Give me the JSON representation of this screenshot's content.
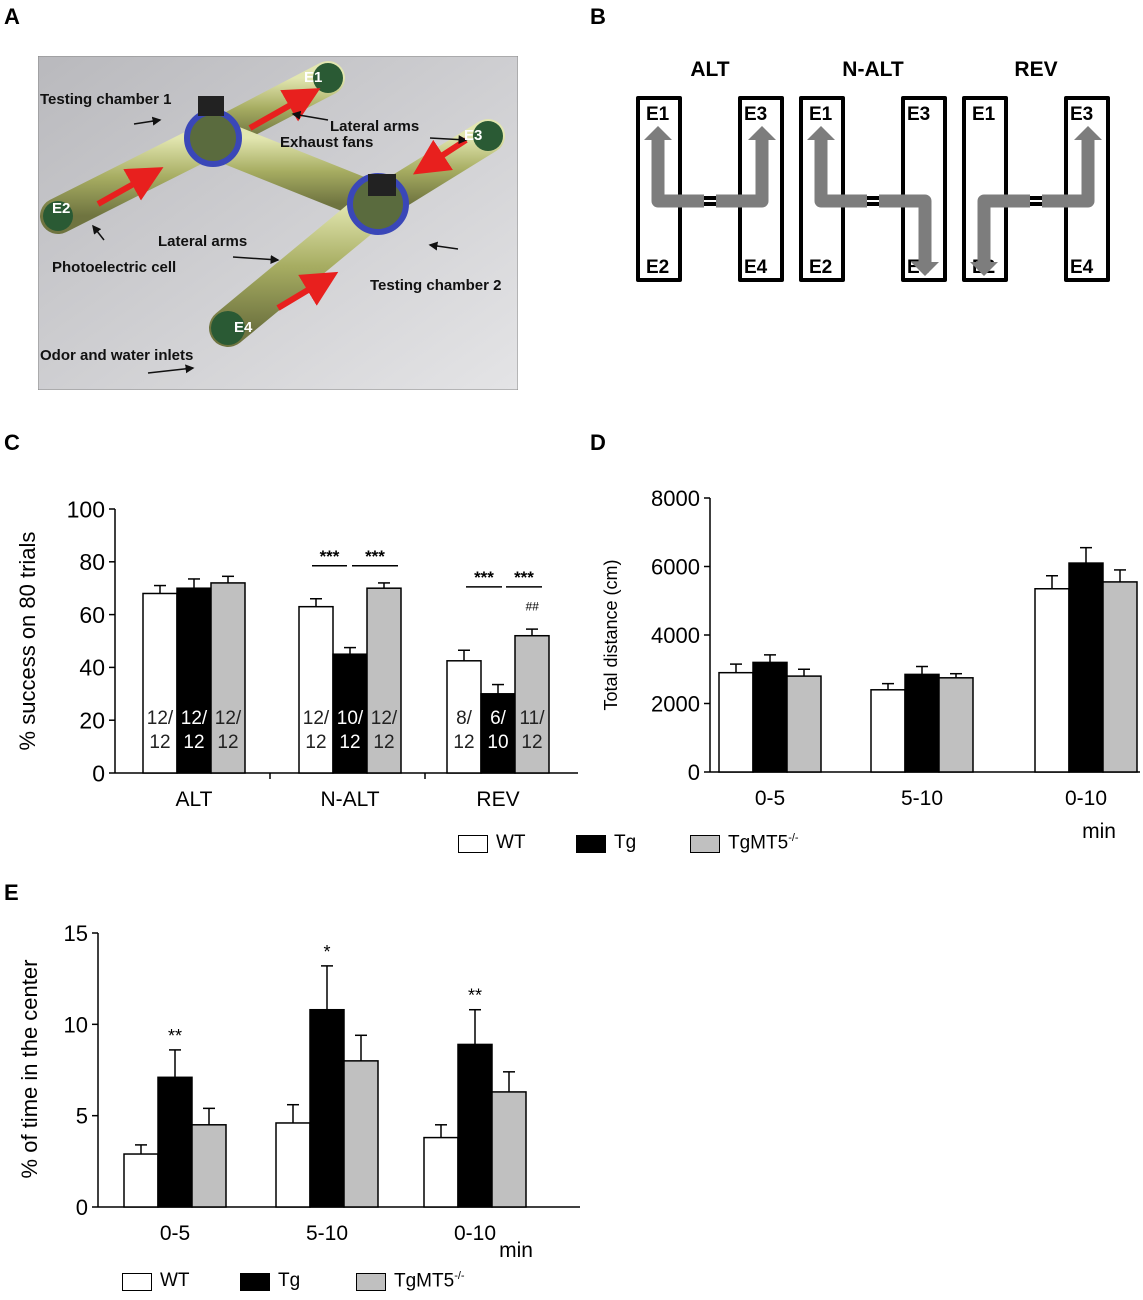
{
  "panels": {
    "A": "A",
    "B": "B",
    "C": "C",
    "D": "D",
    "E": "E"
  },
  "photo": {
    "labels": {
      "testing_chamber_1": "Testing chamber 1",
      "lateral_arms_top": "Lateral arms",
      "exhaust_fans": "Exhaust fans",
      "lateral_arms_bottom": "Lateral arms",
      "photoelectric_cell": "Photoelectric cell",
      "testing_chamber_2": "Testing chamber 2",
      "odor_water_inlets": "Odor and water inlets"
    },
    "entries": {
      "e1": "E1",
      "e2": "E2",
      "e3": "E3",
      "e4": "E4"
    }
  },
  "maze": {
    "configs": [
      {
        "title": "ALT",
        "tl": "E1",
        "tr": "E3",
        "bl": "E2",
        "br": "E4"
      },
      {
        "title": "N-ALT",
        "tl": "E1",
        "tr": "E3",
        "bl": "E2",
        "br": "E4"
      },
      {
        "title": "REV",
        "tl": "E1",
        "tr": "E3",
        "bl": "E2",
        "br": "E4"
      }
    ]
  },
  "legend": {
    "wt": "WT",
    "tg": "Tg",
    "tgmt5_base": "TgMT5",
    "tgmt5_sup": "-/-"
  },
  "colors": {
    "wt": "#ffffff",
    "tg": "#000000",
    "tgmt5": "#c0c0c0"
  },
  "chart_data": [
    {
      "panel": "C",
      "type": "bar",
      "ylabel": "% success on 80 trials",
      "xlabel": "",
      "ylim": [
        0,
        100
      ],
      "yticks": [
        "0",
        "20",
        "40",
        "60",
        "80",
        "100"
      ],
      "categories": [
        "ALT",
        "N-ALT",
        "REV"
      ],
      "series": [
        {
          "name": "WT",
          "values": [
            68,
            63,
            42.5
          ],
          "errors": [
            3,
            3,
            4
          ],
          "counts": [
            [
              "12/",
              "12"
            ],
            [
              "12/",
              "12"
            ],
            [
              "8/",
              "12"
            ]
          ]
        },
        {
          "name": "Tg",
          "values": [
            70,
            45,
            30
          ],
          "errors": [
            3.5,
            2.5,
            3.5
          ],
          "counts": [
            [
              "12/",
              "12"
            ],
            [
              "10/",
              "12"
            ],
            [
              "6/",
              "10"
            ]
          ]
        },
        {
          "name": "TgMT5-/-",
          "values": [
            72,
            70,
            52
          ],
          "errors": [
            2.5,
            2,
            2.5
          ],
          "counts": [
            [
              "12/",
              "12"
            ],
            [
              "12/",
              "12"
            ],
            [
              "11/",
              "12"
            ]
          ]
        }
      ],
      "annotations": {
        "nalt_wt_tg": "***",
        "nalt_tg_mt": "***",
        "rev_wt_tg": "***",
        "rev_tg_mt": "***",
        "rev_hash": "##"
      }
    },
    {
      "panel": "D",
      "type": "bar",
      "ylabel": "Total distance (cm)",
      "xlabel": "min",
      "ylim": [
        0,
        8000
      ],
      "yticks": [
        "0",
        "2000",
        "4000",
        "6000",
        "8000"
      ],
      "categories": [
        "0-5",
        "5-10",
        "0-10"
      ],
      "series": [
        {
          "name": "WT",
          "values": [
            2900,
            2400,
            5350
          ],
          "errors": [
            250,
            180,
            380
          ]
        },
        {
          "name": "Tg",
          "values": [
            3200,
            2850,
            6100
          ],
          "errors": [
            220,
            230,
            450
          ]
        },
        {
          "name": "TgMT5-/-",
          "values": [
            2800,
            2750,
            5550
          ],
          "errors": [
            200,
            120,
            350
          ]
        }
      ]
    },
    {
      "panel": "E",
      "type": "bar",
      "ylabel": "% of time in the center",
      "xlabel": "min",
      "ylim": [
        0,
        15
      ],
      "yticks": [
        "0",
        "5",
        "10",
        "15"
      ],
      "categories": [
        "0-5",
        "5-10",
        "0-10"
      ],
      "series": [
        {
          "name": "WT",
          "values": [
            2.9,
            4.6,
            3.8
          ],
          "errors": [
            0.5,
            1.0,
            0.7
          ]
        },
        {
          "name": "Tg",
          "values": [
            7.1,
            10.8,
            8.9
          ],
          "errors": [
            1.5,
            2.4,
            1.9
          ]
        },
        {
          "name": "TgMT5-/-",
          "values": [
            4.5,
            8.0,
            6.3
          ],
          "errors": [
            0.9,
            1.4,
            1.1
          ]
        }
      ],
      "annotations": {
        "g1": "**",
        "g2": "*",
        "g3": "**"
      }
    }
  ]
}
